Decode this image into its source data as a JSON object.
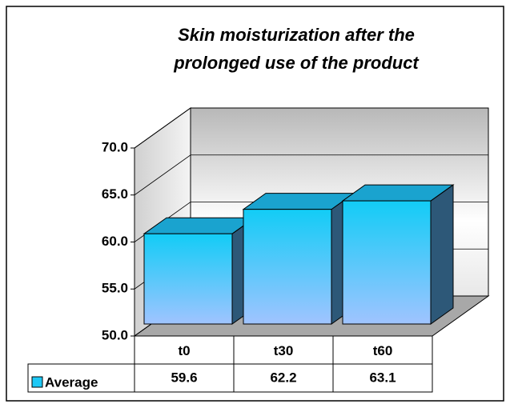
{
  "chart_data": {
    "type": "bar3d",
    "title": "Skin moisturization after the prolonged use of the product",
    "categories": [
      "t0",
      "t30",
      "t60"
    ],
    "series": [
      {
        "name": "Average",
        "color": "#1ec8f5",
        "values": [
          59.6,
          62.2,
          63.1
        ]
      }
    ],
    "ylim": [
      50,
      70
    ],
    "yticks": [
      {
        "value": 50,
        "label": "50.0"
      },
      {
        "value": 55,
        "label": "55.0"
      },
      {
        "value": 60,
        "label": "60.0"
      },
      {
        "value": 65,
        "label": "65.0"
      },
      {
        "value": 70,
        "label": "70.0"
      }
    ],
    "grid": true,
    "data_table": true
  }
}
